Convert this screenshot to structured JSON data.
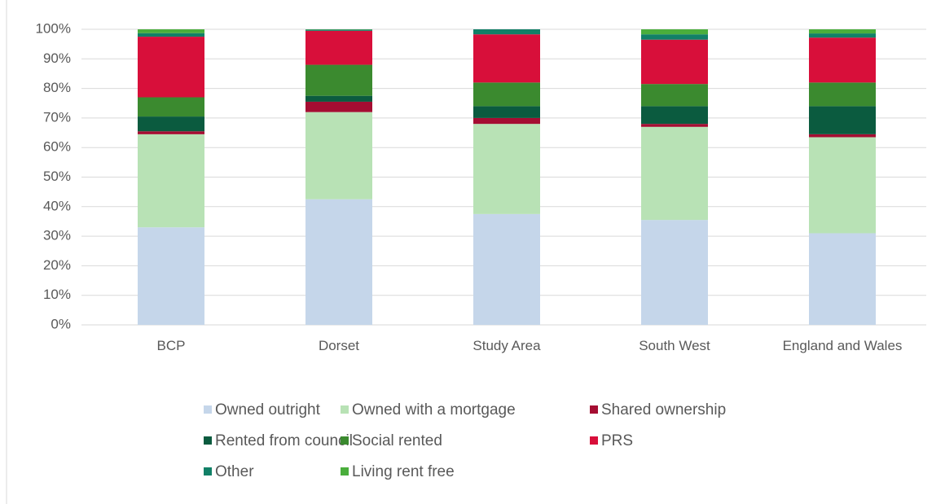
{
  "chart_data": {
    "type": "stacked_bar",
    "categories": [
      "BCP",
      "Dorset",
      "Study Area",
      "South West",
      "England and Wales"
    ],
    "series": [
      {
        "name": "Owned outright",
        "color": "#c5d6ea",
        "values": [
          33,
          42.5,
          37.5,
          35.5,
          31
        ]
      },
      {
        "name": "Owned with a mortgage",
        "color": "#b8e2b5",
        "values": [
          31.5,
          29.5,
          30.5,
          31.5,
          32.5
        ]
      },
      {
        "name": "Shared ownership",
        "color": "#a50d32",
        "values": [
          1,
          3.5,
          2,
          1,
          1
        ]
      },
      {
        "name": "Rented from council",
        "color": "#0b5b3f",
        "values": [
          5,
          2,
          4,
          6,
          9.5
        ]
      },
      {
        "name": "Social rented",
        "color": "#3b8a2f",
        "values": [
          6.5,
          10.5,
          8,
          7.5,
          8
        ]
      },
      {
        "name": "PRS",
        "color": "#d80f3a",
        "values": [
          20.5,
          11.5,
          16.3,
          15,
          15.2
        ]
      },
      {
        "name": "Other",
        "color": "#118067",
        "values": [
          1.2,
          0.4,
          1.7,
          1.8,
          1.4
        ]
      },
      {
        "name": "Living rent free",
        "color": "#4aae3c",
        "values": [
          1.3,
          0.1,
          0,
          1.7,
          1.4
        ]
      }
    ],
    "ylim": [
      0,
      100
    ],
    "yticks": [
      {
        "value": 0,
        "label": "0%"
      },
      {
        "value": 10,
        "label": "10%"
      },
      {
        "value": 20,
        "label": "20%"
      },
      {
        "value": 30,
        "label": "30%"
      },
      {
        "value": 40,
        "label": "40%"
      },
      {
        "value": 50,
        "label": "50%"
      },
      {
        "value": 60,
        "label": "60%"
      },
      {
        "value": 70,
        "label": "70%"
      },
      {
        "value": 80,
        "label": "80%"
      },
      {
        "value": 90,
        "label": "90%"
      },
      {
        "value": 100,
        "label": "100%"
      }
    ],
    "grid": true,
    "legend": "bottom"
  }
}
